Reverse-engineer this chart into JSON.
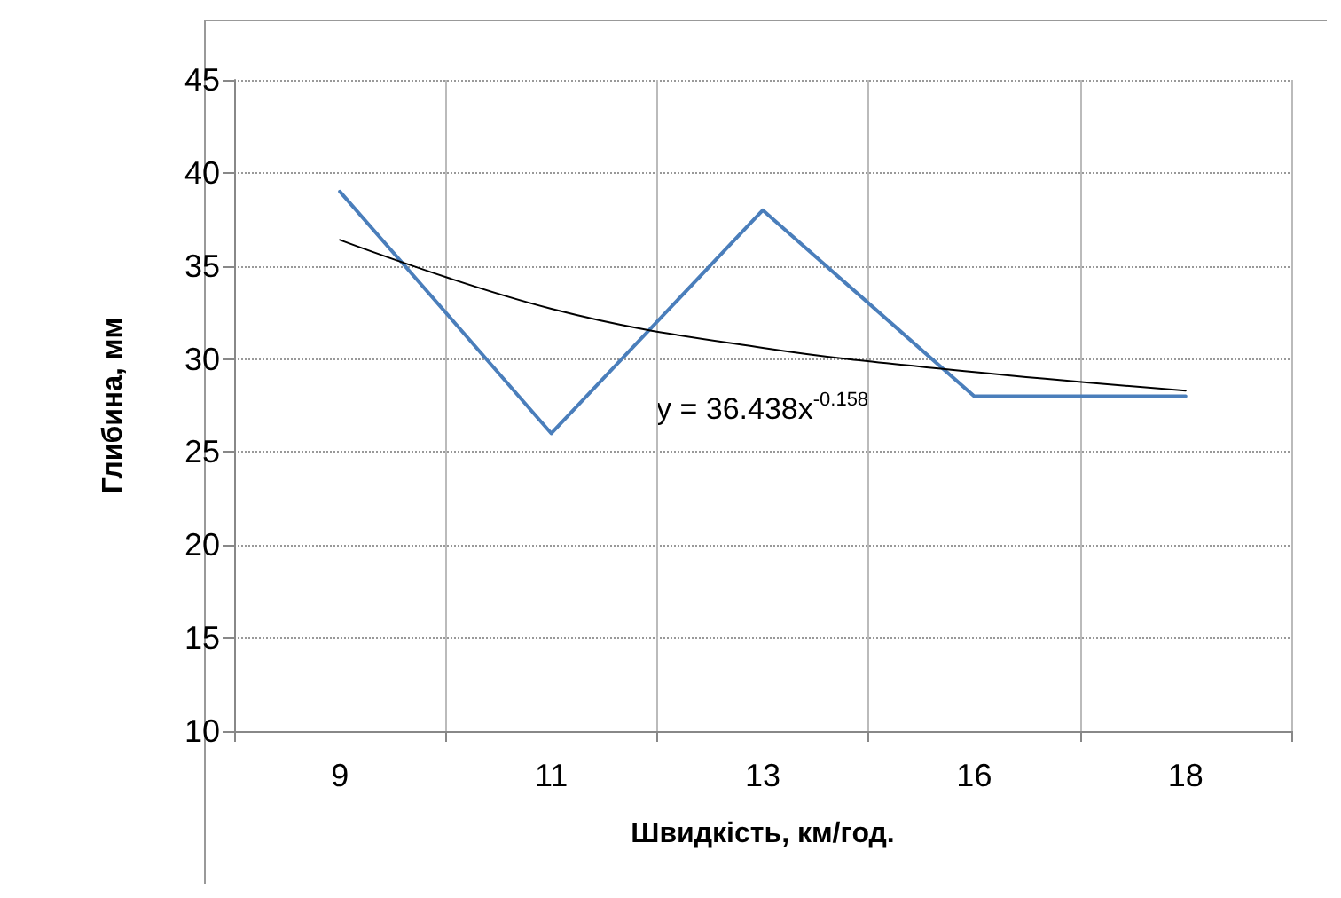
{
  "chart_data": {
    "type": "line",
    "xlabel": "Швидкість, км/год.",
    "ylabel": "Глибина, мм",
    "categories": [
      "9",
      "11",
      "13",
      "16",
      "18"
    ],
    "series": [
      {
        "color": "#4a7ebb",
        "values": [
          39,
          26,
          38,
          28,
          28
        ]
      },
      {
        "type": "line",
        "color": "#000000",
        "x": [
          "9",
          "11",
          "13",
          "16",
          "18"
        ],
        "values": [
          36.4,
          32.7,
          30.6,
          29.3,
          28.3
        ]
      }
    ],
    "ylim": [
      10,
      45
    ],
    "yticks": [
      10,
      15,
      20,
      25,
      30,
      35,
      40,
      45
    ],
    "grid": true,
    "marker": "none",
    "line_style": "solid",
    "annotations": [
      "y = 36.438x$^{-0.158}$"
    ]
  }
}
